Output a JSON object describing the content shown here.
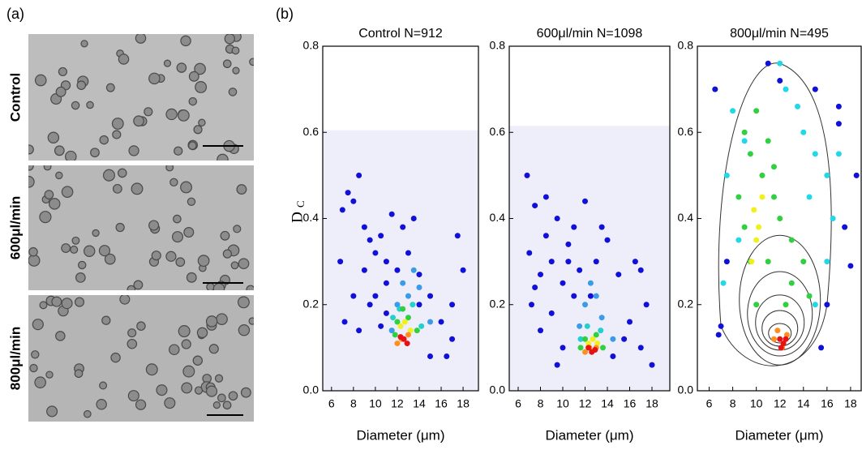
{
  "figure": {
    "panel_a_label": "(a)",
    "panel_b_label": "(b)",
    "image_labels": [
      "Control",
      "600μl/min",
      "800μl/min"
    ]
  },
  "chart_data": [
    {
      "type": "scatter",
      "title": "Control N=912",
      "xlabel": "Diameter (μm)",
      "ylabel": "D",
      "ylabel_sub": "C",
      "xlim": [
        5.2,
        19.4
      ],
      "ylim": [
        0,
        0.8
      ],
      "xticks": [
        6,
        8,
        10,
        12,
        14,
        16,
        18
      ],
      "yticks": [
        {
          "value": 0,
          "label": "0.0"
        },
        0.2,
        0.4,
        0.6,
        0.8
      ],
      "shaded_band": [
        0,
        0.605
      ],
      "series": [
        {
          "color": "#1010d8",
          "x": [
            7,
            7.5,
            8,
            8.5,
            9,
            9.5,
            10,
            10.5,
            11,
            11.5,
            12,
            6.8,
            7.2,
            8,
            9,
            10,
            11,
            12.5,
            13,
            14,
            15,
            16,
            17,
            17.5,
            18,
            16.5,
            15,
            14,
            8.5,
            11,
            9.5,
            13.5,
            17,
            10.5
          ],
          "y": [
            0.42,
            0.46,
            0.44,
            0.5,
            0.38,
            0.35,
            0.32,
            0.36,
            0.3,
            0.41,
            0.28,
            0.3,
            0.16,
            0.22,
            0.28,
            0.22,
            0.25,
            0.38,
            0.32,
            0.27,
            0.22,
            0.16,
            0.12,
            0.36,
            0.28,
            0.08,
            0.08,
            0.2,
            0.14,
            0.18,
            0.2,
            0.4,
            0.2,
            0.15
          ]
        },
        {
          "color": "#3a9be8",
          "x": [
            12,
            13,
            14,
            13.5,
            12.5,
            15,
            11.5
          ],
          "y": [
            0.2,
            0.22,
            0.24,
            0.28,
            0.25,
            0.16,
            0.14
          ]
        },
        {
          "color": "#22d0d0",
          "x": [
            12.2,
            13.4,
            11.6,
            14.2
          ],
          "y": [
            0.19,
            0.2,
            0.17,
            0.15
          ]
        },
        {
          "color": "#30d040",
          "x": [
            12,
            13,
            12.5,
            11.8,
            13.8
          ],
          "y": [
            0.16,
            0.17,
            0.19,
            0.13,
            0.14
          ]
        },
        {
          "color": "#f0f020",
          "x": [
            12.3,
            13.2,
            12.7
          ],
          "y": [
            0.15,
            0.14,
            0.16
          ]
        },
        {
          "color": "#ff9020",
          "x": [
            12.4,
            13,
            12
          ],
          "y": [
            0.12,
            0.13,
            0.11
          ]
        },
        {
          "color": "#e81010",
          "x": [
            12.6,
            12.9,
            12.3
          ],
          "y": [
            0.12,
            0.11,
            0.125
          ]
        }
      ]
    },
    {
      "type": "scatter",
      "title": "600μl/min N=1098",
      "xlabel": "Diameter (μm)",
      "xlim": [
        5.2,
        19.6
      ],
      "ylim": [
        0,
        0.8
      ],
      "xticks": [
        6,
        8,
        10,
        12,
        14,
        16,
        18
      ],
      "yticks": [
        {
          "value": 0,
          "label": "0.0"
        },
        0.2,
        0.4,
        0.6,
        0.8
      ],
      "shaded_band": [
        0,
        0.615
      ],
      "series": [
        {
          "color": "#1010d8",
          "x": [
            6.8,
            7,
            7.5,
            8,
            8.5,
            9,
            9.5,
            10,
            10.5,
            11,
            11.5,
            12,
            12.5,
            13,
            14,
            15,
            16,
            17,
            18,
            7.2,
            8,
            9,
            10,
            11,
            16.5,
            17.5,
            15.5,
            14.5,
            9.5,
            8.5,
            10.5,
            13.5,
            17,
            7.5
          ],
          "y": [
            0.5,
            0.32,
            0.43,
            0.27,
            0.45,
            0.3,
            0.4,
            0.25,
            0.34,
            0.38,
            0.28,
            0.44,
            0.22,
            0.3,
            0.35,
            0.27,
            0.16,
            0.1,
            0.06,
            0.2,
            0.14,
            0.18,
            0.1,
            0.22,
            0.3,
            0.2,
            0.12,
            0.08,
            0.06,
            0.36,
            0.3,
            0.38,
            0.28,
            0.24
          ]
        },
        {
          "color": "#3a9be8",
          "x": [
            12,
            13,
            13.5,
            12.5,
            14.5,
            11.5
          ],
          "y": [
            0.2,
            0.22,
            0.17,
            0.25,
            0.12,
            0.15
          ]
        },
        {
          "color": "#22d0d0",
          "x": [
            12.2,
            13.4,
            11.6
          ],
          "y": [
            0.15,
            0.14,
            0.12
          ]
        },
        {
          "color": "#30d040",
          "x": [
            12,
            13,
            13.6,
            11.6
          ],
          "y": [
            0.12,
            0.13,
            0.1,
            0.1
          ]
        },
        {
          "color": "#f0f020",
          "x": [
            12.3,
            13.1,
            12.7
          ],
          "y": [
            0.11,
            0.11,
            0.12
          ]
        },
        {
          "color": "#ff9020",
          "x": [
            12.4,
            13,
            12
          ],
          "y": [
            0.1,
            0.1,
            0.09
          ]
        },
        {
          "color": "#e81010",
          "x": [
            12.6,
            12.9,
            12.3
          ],
          "y": [
            0.09,
            0.095,
            0.1
          ]
        }
      ]
    },
    {
      "type": "scatter",
      "title": "800μl/min N=495",
      "xlabel": "Diameter (μm)",
      "xlim": [
        5,
        18.9
      ],
      "ylim": [
        0,
        0.8
      ],
      "xticks": [
        6,
        8,
        10,
        12,
        14,
        16,
        18
      ],
      "yticks": [
        {
          "value": 0,
          "label": "0.0"
        },
        0.2,
        0.4,
        0.6,
        0.8
      ],
      "series": [
        {
          "color": "#1010d8",
          "x": [
            6.5,
            7,
            11,
            12,
            15,
            17,
            18.5,
            17.5,
            16,
            6.8,
            18,
            7.5,
            17,
            15.5
          ],
          "y": [
            0.7,
            0.15,
            0.76,
            0.72,
            0.7,
            0.62,
            0.5,
            0.38,
            0.2,
            0.13,
            0.29,
            0.3,
            0.66,
            0.1
          ]
        },
        {
          "color": "#20d8e8",
          "x": [
            12,
            12.5,
            13.5,
            14,
            15,
            16,
            16.5,
            8,
            7.5,
            9,
            8.5,
            7.2,
            14.5,
            17,
            16,
            15
          ],
          "y": [
            0.76,
            0.7,
            0.66,
            0.6,
            0.55,
            0.5,
            0.4,
            0.65,
            0.5,
            0.58,
            0.35,
            0.25,
            0.45,
            0.55,
            0.3,
            0.2
          ]
        },
        {
          "color": "#30d040",
          "x": [
            9,
            9.5,
            10,
            10.5,
            11,
            11.5,
            12,
            13,
            14,
            8.5,
            9,
            11,
            13,
            14.5,
            10,
            12.5,
            9.5,
            11.5
          ],
          "y": [
            0.6,
            0.55,
            0.65,
            0.5,
            0.58,
            0.45,
            0.4,
            0.35,
            0.3,
            0.45,
            0.38,
            0.3,
            0.25,
            0.22,
            0.2,
            0.2,
            0.3,
            0.52
          ]
        },
        {
          "color": "#f0f020",
          "x": [
            9.8,
            10.2,
            10,
            10.5,
            9.6
          ],
          "y": [
            0.42,
            0.38,
            0.35,
            0.45,
            0.3
          ]
        },
        {
          "color": "#ff9020",
          "x": [
            11.8,
            12.6,
            12.2,
            11.5
          ],
          "y": [
            0.14,
            0.13,
            0.1,
            0.12
          ]
        },
        {
          "color": "#e81010",
          "x": [
            12,
            12.3,
            12.5,
            12.1
          ],
          "y": [
            0.12,
            0.11,
            0.12,
            0.1
          ]
        }
      ]
    }
  ]
}
